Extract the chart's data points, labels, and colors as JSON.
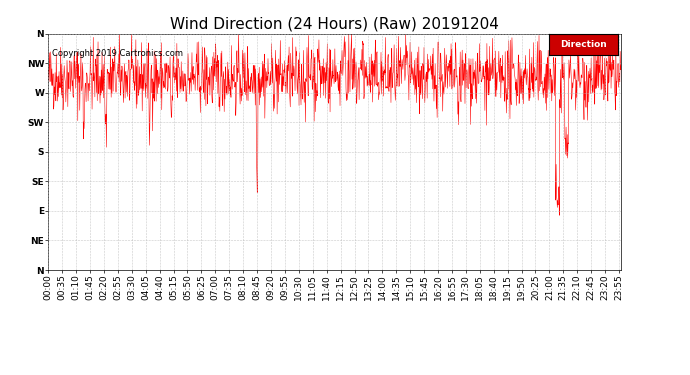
{
  "title": "Wind Direction (24 Hours) (Raw) 20191204",
  "copyright_text": "Copyright 2019 Cartronics.com",
  "legend_label": "Direction",
  "legend_bg": "#cc0000",
  "line_color": "#ff0000",
  "bg_color": "#ffffff",
  "plot_bg_color": "#ffffff",
  "grid_color": "#bbbbbb",
  "ytick_labels": [
    "N",
    "NW",
    "W",
    "SW",
    "S",
    "SE",
    "E",
    "NE",
    "N"
  ],
  "ytick_values": [
    360,
    315,
    270,
    225,
    180,
    135,
    90,
    45,
    0
  ],
  "ylim": [
    0,
    360
  ],
  "title_fontsize": 11,
  "tick_fontsize": 6.5,
  "copyright_fontsize": 6,
  "seed": 42,
  "num_points": 1440
}
